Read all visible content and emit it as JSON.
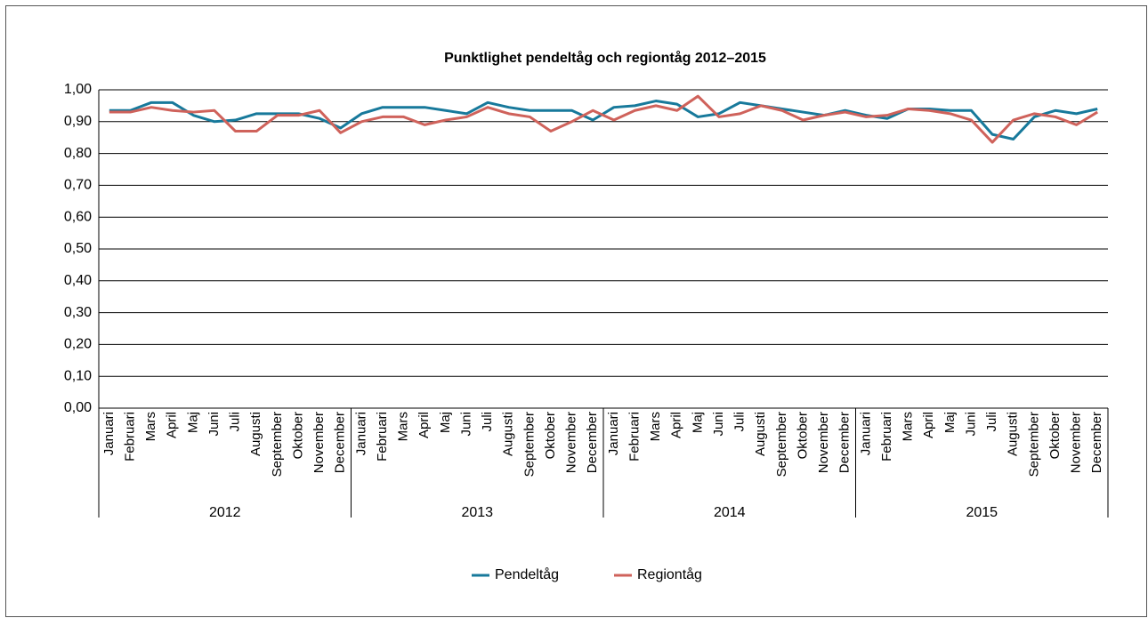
{
  "chart_data": {
    "type": "line",
    "title": "Punktlighet pendeltåg och regiontåg 2012–2015",
    "categories": [
      "Januari",
      "Februari",
      "Mars",
      "April",
      "Maj",
      "Juni",
      "Juli",
      "Augusti",
      "September",
      "Oktober",
      "November",
      "December",
      "Januari",
      "Februari",
      "Mars",
      "April",
      "Maj",
      "Juni",
      "Juli",
      "Augusti",
      "September",
      "Oktober",
      "November",
      "December",
      "Januari",
      "Februari",
      "Mars",
      "April",
      "Maj",
      "Juni",
      "Juli",
      "Augusti",
      "September",
      "Oktober",
      "November",
      "December",
      "Januari",
      "Februari",
      "Mars",
      "April",
      "Maj",
      "Juni",
      "Juli",
      "Augusti",
      "September",
      "Oktober",
      "November",
      "December"
    ],
    "x_groups": [
      "2012",
      "2013",
      "2014",
      "2015"
    ],
    "series": [
      {
        "name": "Pendeltåg",
        "color": "#17799b",
        "values": [
          0.935,
          0.935,
          0.96,
          0.96,
          0.92,
          0.9,
          0.905,
          0.925,
          0.925,
          0.925,
          0.91,
          0.88,
          0.925,
          0.945,
          0.945,
          0.945,
          0.935,
          0.925,
          0.96,
          0.945,
          0.935,
          0.935,
          0.935,
          0.905,
          0.945,
          0.95,
          0.965,
          0.955,
          0.915,
          0.925,
          0.96,
          0.95,
          0.94,
          0.93,
          0.92,
          0.935,
          0.92,
          0.91,
          0.94,
          0.94,
          0.935,
          0.935,
          0.86,
          0.845,
          0.915,
          0.935,
          0.925,
          0.94
        ]
      },
      {
        "name": "Regiontåg",
        "color": "#cf625b",
        "values": [
          0.93,
          0.93,
          0.945,
          0.935,
          0.93,
          0.935,
          0.87,
          0.87,
          0.92,
          0.92,
          0.935,
          0.865,
          0.9,
          0.915,
          0.915,
          0.89,
          0.905,
          0.915,
          0.945,
          0.925,
          0.915,
          0.87,
          0.9,
          0.935,
          0.905,
          0.935,
          0.95,
          0.935,
          0.98,
          0.915,
          0.925,
          0.95,
          0.935,
          0.905,
          0.92,
          0.93,
          0.915,
          0.92,
          0.94,
          0.935,
          0.925,
          0.905,
          0.835,
          0.905,
          0.925,
          0.915,
          0.89,
          0.93
        ]
      }
    ],
    "ylim": [
      0,
      1
    ],
    "yticks": [
      {
        "value": 0,
        "label": "0,00"
      },
      {
        "value": 0.1,
        "label": "0,10"
      },
      {
        "value": 0.2,
        "label": "0,20"
      },
      {
        "value": 0.3,
        "label": "0,30"
      },
      {
        "value": 0.4,
        "label": "0,40"
      },
      {
        "value": 0.5,
        "label": "0,50"
      },
      {
        "value": 0.6,
        "label": "0,60"
      },
      {
        "value": 0.7,
        "label": "0,70"
      },
      {
        "value": 0.8,
        "label": "0,80"
      },
      {
        "value": 0.9,
        "label": "0,90"
      },
      {
        "value": 1,
        "label": "1,00"
      }
    ],
    "grid": true,
    "legend": "bottom"
  }
}
